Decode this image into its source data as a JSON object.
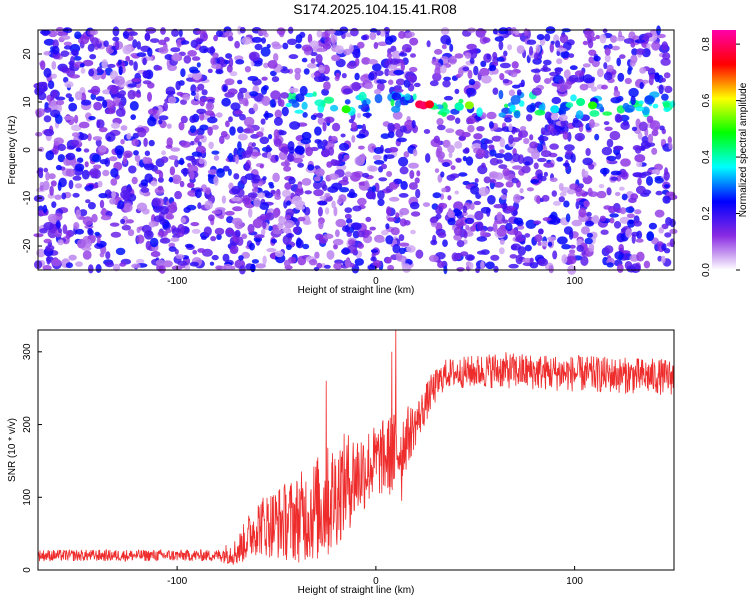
{
  "figure": {
    "title": "S174.2025.104.15.41.R08"
  },
  "chart_data": [
    {
      "type": "heatmap",
      "title": "S174.2025.104.15.41.R08",
      "xlabel": "Height of straight line (km)",
      "ylabel": "Frequency (Hz)",
      "xlim": [
        -170,
        150
      ],
      "ylim": [
        -25,
        25
      ],
      "xticks": [
        -100,
        0,
        100
      ],
      "yticks": [
        -20,
        -10,
        0,
        10,
        20
      ],
      "colorbar": {
        "label": "Normalized spectral amplitude",
        "range": [
          0.0,
          0.85
        ],
        "ticks": [
          0.0,
          0.2,
          0.4,
          0.6,
          0.8
        ],
        "colors": [
          "#ffffff",
          "#8a2be2",
          "#0000ff",
          "#00ffff",
          "#00ff00",
          "#ffff00",
          "#ff0000",
          "#ff00aa"
        ]
      },
      "background_level": 0.15,
      "band": {
        "frequency": 9.5,
        "x_start": -45,
        "x_end": 150,
        "level": 0.35
      },
      "gap": {
        "x_start": 20,
        "x_end": 29
      },
      "peaks": [
        {
          "x": -15,
          "y": 8.5,
          "value": 0.5
        },
        {
          "x": 22,
          "y": 9.5,
          "value": 0.78
        },
        {
          "x": 24,
          "y": 9.3,
          "value": 0.8
        },
        {
          "x": 27,
          "y": 9.5,
          "value": 0.75
        },
        {
          "x": 42,
          "y": 9.0,
          "value": 0.4
        },
        {
          "x": 47,
          "y": 9.3,
          "value": 0.55
        },
        {
          "x": 90,
          "y": 8.5,
          "value": 0.35
        },
        {
          "x": 103,
          "y": 10.0,
          "value": 0.42
        },
        {
          "x": 109,
          "y": 9.3,
          "value": 0.5
        }
      ]
    },
    {
      "type": "line",
      "xlabel": "Height of straight line (km)",
      "ylabel": "SNR (10 * v/v)",
      "xlim": [
        -170,
        150
      ],
      "ylim": [
        0,
        330
      ],
      "xticks": [
        -100,
        0,
        100
      ],
      "yticks": [
        0,
        100,
        200,
        300
      ],
      "color": "#ee2c2c",
      "profile": [
        {
          "x": -170,
          "mean": 20,
          "noise": 8
        },
        {
          "x": -80,
          "mean": 20,
          "noise": 8
        },
        {
          "x": -70,
          "mean": 25,
          "noise": 20
        },
        {
          "x": -60,
          "mean": 60,
          "noise": 40
        },
        {
          "x": -40,
          "mean": 70,
          "noise": 60
        },
        {
          "x": -25,
          "mean": 90,
          "noise": 80
        },
        {
          "x": -15,
          "mean": 120,
          "noise": 70
        },
        {
          "x": 0,
          "mean": 150,
          "noise": 50
        },
        {
          "x": 10,
          "mean": 160,
          "noise": 60
        },
        {
          "x": 20,
          "mean": 200,
          "noise": 30
        },
        {
          "x": 28,
          "mean": 245,
          "noise": 25
        },
        {
          "x": 35,
          "mean": 270,
          "noise": 20
        },
        {
          "x": 60,
          "mean": 275,
          "noise": 25
        },
        {
          "x": 100,
          "mean": 270,
          "noise": 25
        },
        {
          "x": 150,
          "mean": 265,
          "noise": 25
        }
      ],
      "spikes": [
        {
          "x": 10,
          "y": 330
        },
        {
          "x": 8,
          "y": 300
        },
        {
          "x": -25,
          "y": 260
        },
        {
          "x": 13,
          "y": 95
        }
      ]
    }
  ]
}
